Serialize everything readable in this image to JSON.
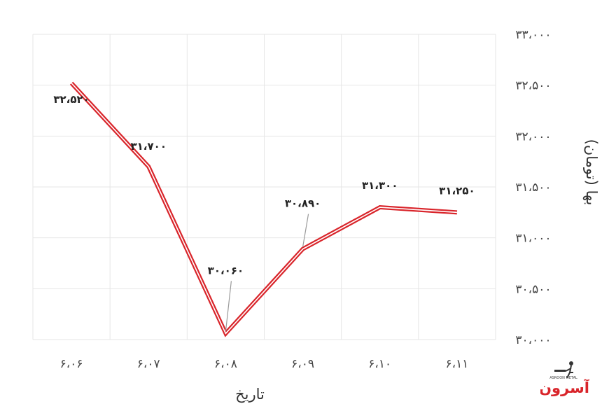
{
  "chart_data": {
    "type": "line",
    "categories": [
      "۶،۰۶",
      "۶،۰۷",
      "۶،۰۸",
      "۶،۰۹",
      "۶،۱۰",
      "۶،۱۱"
    ],
    "series": [
      {
        "values": [
          32520,
          31700,
          30060,
          30890,
          31300,
          31250
        ],
        "labels": [
          "۳۲،۵۲۰",
          "۳۱،۷۰۰",
          "۳۰،۰۶۰",
          "۳۰،۸۹۰",
          "۳۱،۳۰۰",
          "۳۱،۲۵۰"
        ],
        "color": "#d9252b"
      }
    ],
    "ylim": [
      30000,
      33000
    ],
    "yticks": [
      30000,
      30500,
      31000,
      31500,
      32000,
      32500,
      33000
    ],
    "ytick_labels": [
      "۳۰،۰۰۰",
      "۳۰،۵۰۰",
      "۳۱،۰۰۰",
      "۳۱،۵۰۰",
      "۳۲،۰۰۰",
      "۳۲،۵۰۰",
      "۳۳،۰۰۰"
    ],
    "xlabel": "تاریخ",
    "ylabel": "بها (تومان)",
    "grid": true,
    "y_axis_side": "right"
  },
  "logo": {
    "brand_text": "آسرون",
    "sub_text": "ASROON METAL",
    "color": "#d9252b"
  }
}
